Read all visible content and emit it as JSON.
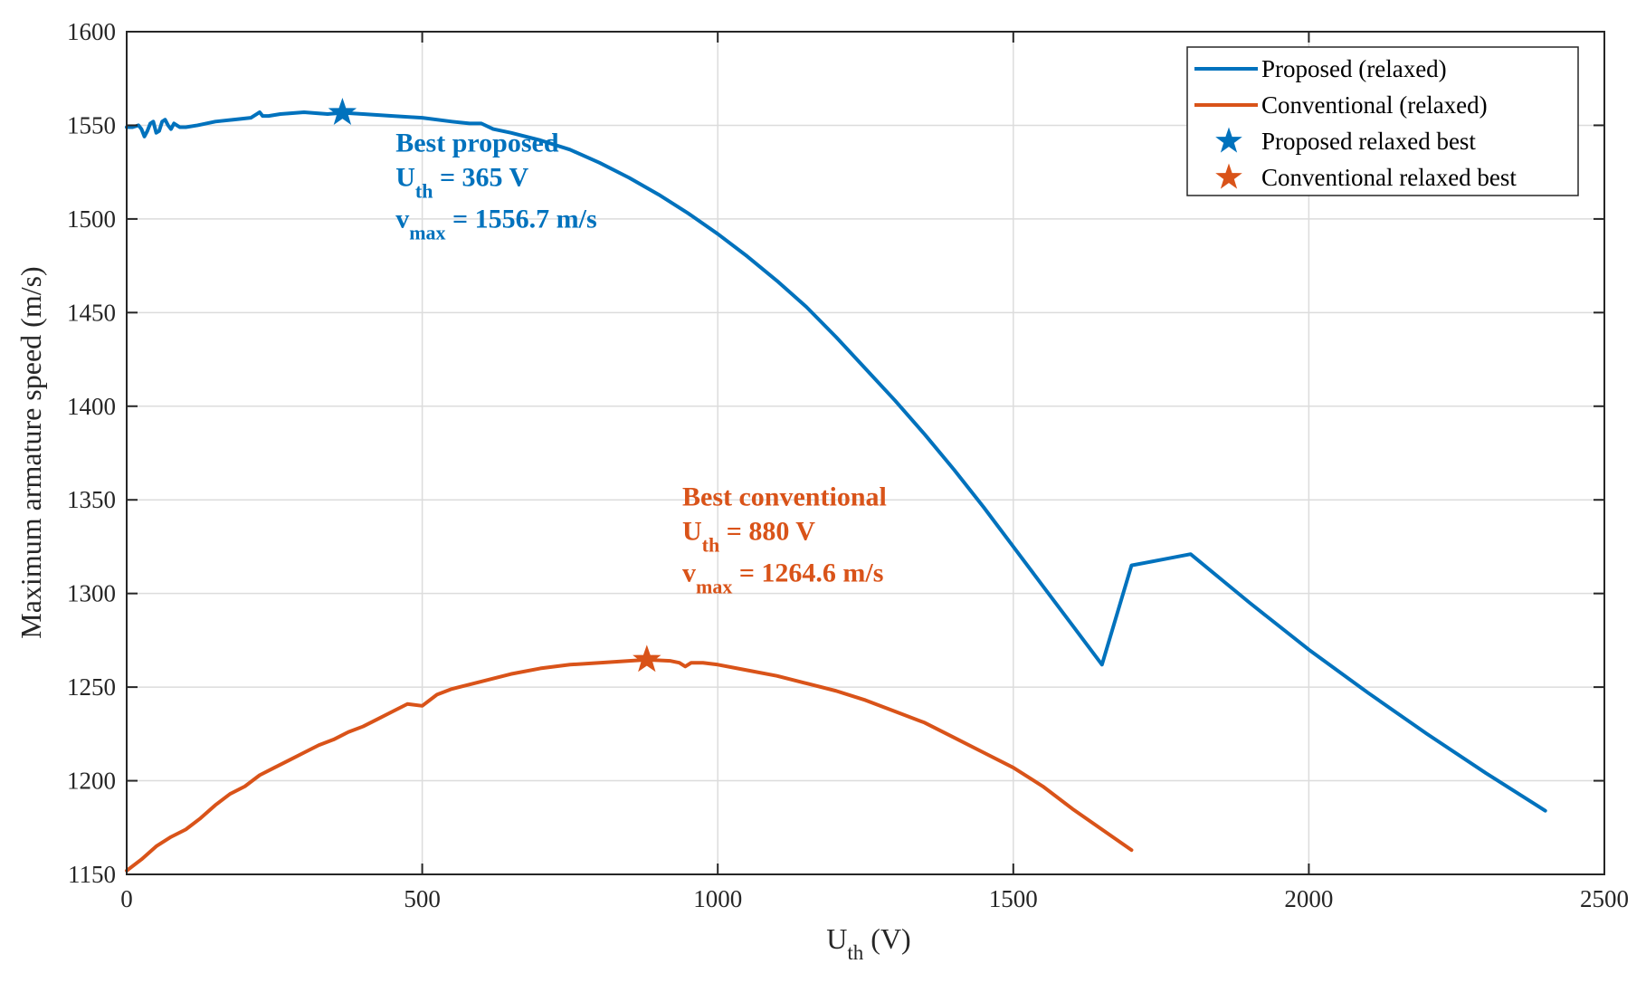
{
  "chart_data": {
    "type": "line",
    "title": "",
    "xlabel": "U",
    "xlabel_sub": "th",
    "xlabel_unit": " (V)",
    "ylabel": "Maximum armature speed (m/s)",
    "xlim": [
      0,
      2500
    ],
    "ylim": [
      1150,
      1600
    ],
    "xticks": [
      0,
      500,
      1000,
      1500,
      2000,
      2500
    ],
    "yticks": [
      1150,
      1200,
      1250,
      1300,
      1350,
      1400,
      1450,
      1500,
      1550,
      1600
    ],
    "grid": true,
    "legend_position": "top-right",
    "series": [
      {
        "name": "Proposed (relaxed)",
        "color": "#0072BD",
        "x": [
          0,
          10,
          20,
          25,
          30,
          35,
          40,
          45,
          50,
          55,
          60,
          65,
          70,
          75,
          80,
          90,
          100,
          120,
          150,
          180,
          210,
          220,
          225,
          230,
          240,
          260,
          300,
          340,
          365,
          400,
          450,
          500,
          550,
          580,
          600,
          620,
          650,
          700,
          750,
          800,
          850,
          900,
          950,
          1000,
          1050,
          1100,
          1150,
          1200,
          1250,
          1300,
          1350,
          1400,
          1450,
          1500,
          1550,
          1600,
          1650,
          1700,
          1750,
          1800,
          1850,
          1900,
          2000,
          2100,
          2200,
          2300,
          2400
        ],
        "y": [
          1549,
          1549,
          1550,
          1548,
          1544,
          1547,
          1551,
          1552,
          1546,
          1547,
          1552,
          1553,
          1550,
          1548,
          1551,
          1549,
          1549,
          1550,
          1552,
          1553,
          1554,
          1556,
          1557,
          1555,
          1555,
          1556,
          1557,
          1556,
          1556.7,
          1556,
          1555,
          1554,
          1552,
          1551,
          1551,
          1548,
          1546,
          1542,
          1537,
          1530,
          1522,
          1513,
          1503,
          1492,
          1480,
          1467,
          1453,
          1437,
          1420,
          1403,
          1385,
          1366,
          1346,
          1325,
          1304,
          1283,
          1262,
          1315,
          1318,
          1321,
          1308,
          1295,
          1270,
          1247,
          1225,
          1204,
          1184
        ]
      },
      {
        "name": "Conventional (relaxed)",
        "color": "#D95319",
        "x": [
          0,
          25,
          50,
          75,
          100,
          125,
          150,
          175,
          200,
          225,
          250,
          275,
          300,
          325,
          350,
          375,
          400,
          425,
          450,
          475,
          500,
          525,
          550,
          575,
          600,
          650,
          700,
          750,
          800,
          850,
          880,
          920,
          935,
          945,
          955,
          975,
          1000,
          1050,
          1100,
          1150,
          1200,
          1250,
          1300,
          1350,
          1400,
          1450,
          1500,
          1550,
          1600,
          1650,
          1700
        ],
        "y": [
          1152,
          1158,
          1165,
          1170,
          1174,
          1180,
          1187,
          1193,
          1197,
          1203,
          1207,
          1211,
          1215,
          1219,
          1222,
          1226,
          1229,
          1233,
          1237,
          1241,
          1240,
          1246,
          1249,
          1251,
          1253,
          1257,
          1260,
          1262,
          1263,
          1264,
          1264.6,
          1264,
          1263,
          1261,
          1263,
          1263,
          1262,
          1259,
          1256,
          1252,
          1248,
          1243,
          1237,
          1231,
          1223,
          1215,
          1207,
          1197,
          1185,
          1174,
          1163
        ]
      },
      {
        "name": "Proposed relaxed best",
        "color": "#0072BD",
        "marker": "star",
        "x": [
          365
        ],
        "y": [
          1556.7
        ]
      },
      {
        "name": "Conventional relaxed best",
        "color": "#D95319",
        "marker": "star",
        "x": [
          880
        ],
        "y": [
          1264.6
        ]
      }
    ],
    "annotations": [
      {
        "color": "#0072BD",
        "x": 455,
        "y": 1536,
        "title": "Best proposed",
        "line2_var": "U",
        "line2_sub": "th",
        "line2_rest": " = 365 V",
        "line3_var": "v",
        "line3_sub": "max",
        "line3_rest": " = 1556.7 m/s"
      },
      {
        "color": "#D95319",
        "x": 940,
        "y": 1347,
        "title": "Best conventional",
        "line2_var": "U",
        "line2_sub": "th",
        "line2_rest": " = 880 V",
        "line3_var": "v",
        "line3_sub": "max",
        "line3_rest": " = 1264.6 m/s"
      }
    ]
  }
}
